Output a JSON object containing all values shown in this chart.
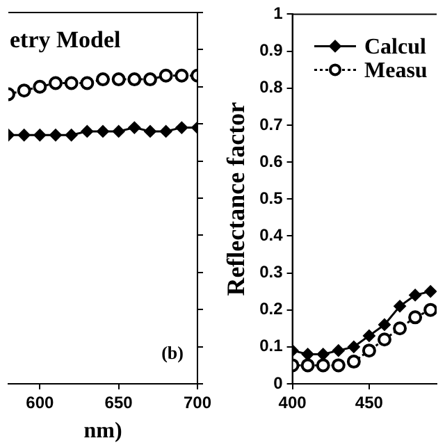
{
  "chart_data": [
    {
      "type": "line",
      "title": "etry Model",
      "xlabel": "nm)",
      "annotations": [
        "(b)"
      ],
      "x": [
        580,
        590,
        600,
        610,
        620,
        630,
        640,
        650,
        660,
        670,
        680,
        690,
        700
      ],
      "xlim": [
        580,
        700
      ],
      "xticks": [
        600,
        650,
        700
      ],
      "ylim": [
        0,
        1
      ],
      "yticks": [
        0,
        0.1,
        0.2,
        0.3,
        0.4,
        0.5,
        0.6,
        0.7,
        0.8,
        0.9,
        1
      ],
      "tick_labels": "x",
      "grid": false,
      "legend": false,
      "series": [
        {
          "color": "#000000",
          "marker": "circle",
          "line_style": "dotted",
          "values": [
            0.78,
            0.79,
            0.8,
            0.81,
            0.81,
            0.81,
            0.82,
            0.82,
            0.82,
            0.82,
            0.83,
            0.83,
            0.83
          ]
        },
        {
          "color": "#000000",
          "marker": "diamond",
          "line_style": "solid",
          "values": [
            0.67,
            0.67,
            0.67,
            0.67,
            0.67,
            0.68,
            0.68,
            0.68,
            0.69,
            0.68,
            0.68,
            0.69,
            0.69
          ]
        }
      ]
    },
    {
      "type": "line",
      "ylabel": "Reflectance factor",
      "x": [
        400,
        410,
        420,
        430,
        440,
        450,
        460,
        470,
        480,
        490
      ],
      "xlim": [
        400,
        494
      ],
      "xticks": [
        400,
        450
      ],
      "ylim": [
        0,
        1
      ],
      "yticks": [
        0,
        0.1,
        0.2,
        0.3,
        0.4,
        0.5,
        0.6,
        0.7,
        0.8,
        0.9,
        1
      ],
      "grid": false,
      "legend": "top right",
      "series": [
        {
          "name": "Calcul",
          "color": "#000000",
          "marker": "diamond",
          "line_style": "solid",
          "values": [
            0.09,
            0.08,
            0.08,
            0.09,
            0.1,
            0.13,
            0.16,
            0.21,
            0.24,
            0.25
          ]
        },
        {
          "name": "Measu",
          "color": "#000000",
          "marker": "circle",
          "line_style": "dotted",
          "values": [
            0.05,
            0.05,
            0.05,
            0.05,
            0.06,
            0.09,
            0.12,
            0.15,
            0.18,
            0.2
          ]
        }
      ]
    }
  ]
}
